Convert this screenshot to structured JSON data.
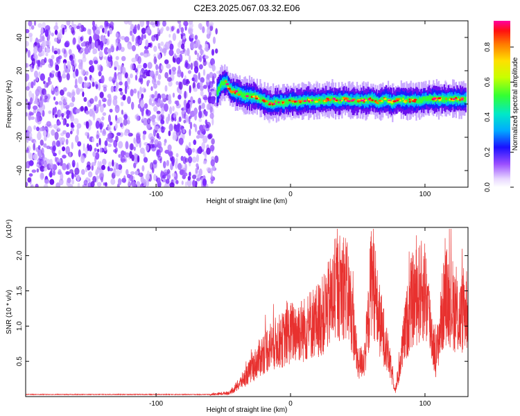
{
  "title": "C2E3.2025.067.03.32.E06",
  "chart_data": [
    {
      "type": "heatmap",
      "xlabel": "Height of straight line (km)",
      "ylabel": "Frequency (Hz)",
      "xlim": [
        -197,
        132
      ],
      "ylim": [
        -50,
        50
      ],
      "xticks": [
        -100,
        0,
        100
      ],
      "yticks": [
        -40,
        -20,
        0,
        20,
        40
      ],
      "colorbar": {
        "label": "Normalized spectral amplitude",
        "range": [
          0.0,
          0.95
        ],
        "ticks": [
          0.0,
          0.2,
          0.4,
          0.6,
          0.8
        ],
        "colormap": "rainbow (magenta-blue-cyan-green-yellow-red)"
      },
      "noise_region_x": [
        -197,
        -55
      ],
      "signal_ridge": {
        "x": [
          -55,
          -52,
          -48,
          -45,
          -40,
          -35,
          -30,
          -25,
          -20,
          -15,
          -10,
          -5,
          0,
          5,
          10,
          15,
          20,
          25,
          30,
          35,
          40,
          45,
          50,
          55,
          60,
          65,
          70,
          73,
          75,
          80,
          85,
          90,
          95,
          100,
          105,
          110,
          115,
          120,
          125,
          130
        ],
        "y": [
          7,
          12,
          13,
          8,
          7,
          5,
          5,
          4,
          2,
          0,
          1,
          1,
          2,
          1,
          2,
          2,
          2,
          2,
          3,
          2,
          3,
          2,
          2,
          2,
          3,
          1,
          3,
          2,
          1,
          3,
          2,
          2,
          2,
          3,
          3,
          3,
          3,
          3,
          3,
          3
        ]
      },
      "grid": false
    },
    {
      "type": "line",
      "xlabel": "Height of straight line (km)",
      "ylabel": "SNR (10 * v/v)",
      "y_multiplier": "(x10⁴)",
      "xlim": [
        -197,
        132
      ],
      "ylim": [
        0,
        2.4
      ],
      "xticks": [
        -100,
        0,
        100
      ],
      "yticks": [
        0.5,
        1.0,
        1.5,
        2.0
      ],
      "yticklabels": [
        "0.5",
        "1.0",
        "1.5",
        "2.0"
      ],
      "color": "#e8312f",
      "envelope": {
        "x": [
          -197,
          -60,
          -45,
          -38,
          -30,
          -25,
          -20,
          -15,
          -10,
          -5,
          0,
          5,
          10,
          15,
          20,
          25,
          30,
          35,
          40,
          45,
          48,
          50,
          55,
          58,
          60,
          62,
          65,
          70,
          75,
          78,
          80,
          85,
          90,
          95,
          100,
          105,
          108,
          112,
          115,
          120,
          125,
          130
        ],
        "y": [
          0.03,
          0.03,
          0.06,
          0.2,
          0.4,
          0.55,
          0.7,
          0.8,
          0.85,
          0.9,
          1.0,
          1.05,
          1.05,
          1.15,
          1.2,
          1.3,
          1.5,
          1.7,
          1.8,
          1.4,
          0.9,
          0.5,
          0.6,
          1.2,
          1.9,
          1.8,
          1.3,
          0.9,
          0.4,
          0.1,
          0.3,
          1.0,
          1.5,
          1.6,
          1.7,
          1.0,
          0.6,
          1.2,
          1.6,
          1.5,
          1.2,
          1.4
        ]
      },
      "grid": false
    }
  ]
}
